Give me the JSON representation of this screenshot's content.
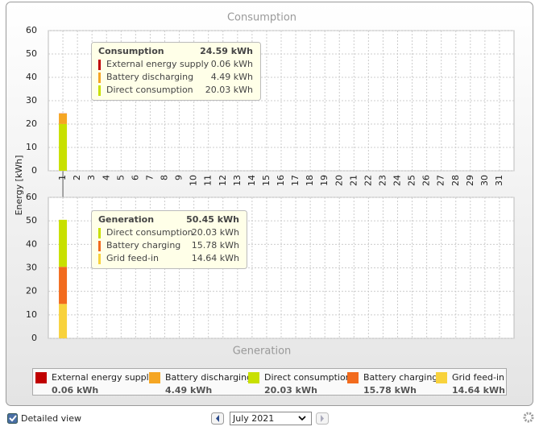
{
  "ylabel": "Energy [kWh]",
  "chart_data": [
    {
      "type": "bar",
      "stacked": true,
      "title": "Consumption",
      "categories": [
        "1",
        "2",
        "3",
        "4",
        "5",
        "6",
        "7",
        "8",
        "9",
        "10",
        "11",
        "12",
        "13",
        "14",
        "15",
        "16",
        "17",
        "18",
        "19",
        "20",
        "21",
        "22",
        "23",
        "24",
        "25",
        "26",
        "27",
        "28",
        "29",
        "30",
        "31"
      ],
      "series": [
        {
          "name": "External energy supply",
          "color": "#c00000",
          "values": [
            0.06,
            null,
            null,
            null,
            null,
            null,
            null,
            null,
            null,
            null,
            null,
            null,
            null,
            null,
            null,
            null,
            null,
            null,
            null,
            null,
            null,
            null,
            null,
            null,
            null,
            null,
            null,
            null,
            null,
            null,
            null
          ],
          "value_labels": [
            "0.06 kWh",
            null,
            null,
            null,
            null,
            null,
            null,
            null,
            null,
            null,
            null,
            null,
            null,
            null,
            null,
            null,
            null,
            null,
            null,
            null,
            null,
            null,
            null,
            null,
            null,
            null,
            null,
            null,
            null,
            null,
            null
          ]
        },
        {
          "name": "Battery discharging",
          "color": "#f5a623",
          "values": [
            4.49,
            null,
            null,
            null,
            null,
            null,
            null,
            null,
            null,
            null,
            null,
            null,
            null,
            null,
            null,
            null,
            null,
            null,
            null,
            null,
            null,
            null,
            null,
            null,
            null,
            null,
            null,
            null,
            null,
            null,
            null
          ],
          "value_labels": [
            "4.49 kWh",
            null,
            null,
            null,
            null,
            null,
            null,
            null,
            null,
            null,
            null,
            null,
            null,
            null,
            null,
            null,
            null,
            null,
            null,
            null,
            null,
            null,
            null,
            null,
            null,
            null,
            null,
            null,
            null,
            null,
            null
          ]
        },
        {
          "name": "Direct consumption",
          "color": "#c8e000",
          "values": [
            20.03,
            null,
            null,
            null,
            null,
            null,
            null,
            null,
            null,
            null,
            null,
            null,
            null,
            null,
            null,
            null,
            null,
            null,
            null,
            null,
            null,
            null,
            null,
            null,
            null,
            null,
            null,
            null,
            null,
            null,
            null
          ],
          "value_labels": [
            "20.03 kWh",
            null,
            null,
            null,
            null,
            null,
            null,
            null,
            null,
            null,
            null,
            null,
            null,
            null,
            null,
            null,
            null,
            null,
            null,
            null,
            null,
            null,
            null,
            null,
            null,
            null,
            null,
            null,
            null,
            null,
            null
          ]
        }
      ],
      "ylim": [
        0,
        60
      ],
      "yticks": [
        0,
        10,
        20,
        30,
        40,
        50,
        60
      ],
      "grid": true,
      "tooltip": {
        "title": "Consumption",
        "total": "24.59 kWh"
      }
    },
    {
      "type": "bar",
      "stacked": true,
      "title": "Generation",
      "series": [
        {
          "name": "Direct consumption",
          "color": "#c8e000",
          "values": [
            20.03,
            null,
            null,
            null,
            null,
            null,
            null,
            null,
            null,
            null,
            null,
            null,
            null,
            null,
            null,
            null,
            null,
            null,
            null,
            null,
            null,
            null,
            null,
            null,
            null,
            null,
            null,
            null,
            null,
            null,
            null
          ],
          "value_labels": [
            "20.03 kWh",
            null,
            null,
            null,
            null,
            null,
            null,
            null,
            null,
            null,
            null,
            null,
            null,
            null,
            null,
            null,
            null,
            null,
            null,
            null,
            null,
            null,
            null,
            null,
            null,
            null,
            null,
            null,
            null,
            null,
            null
          ]
        },
        {
          "name": "Battery charging",
          "color": "#f26b1d",
          "values": [
            15.78,
            null,
            null,
            null,
            null,
            null,
            null,
            null,
            null,
            null,
            null,
            null,
            null,
            null,
            null,
            null,
            null,
            null,
            null,
            null,
            null,
            null,
            null,
            null,
            null,
            null,
            null,
            null,
            null,
            null,
            null
          ],
          "value_labels": [
            "15.78 kWh",
            null,
            null,
            null,
            null,
            null,
            null,
            null,
            null,
            null,
            null,
            null,
            null,
            null,
            null,
            null,
            null,
            null,
            null,
            null,
            null,
            null,
            null,
            null,
            null,
            null,
            null,
            null,
            null,
            null,
            null
          ]
        },
        {
          "name": "Grid feed-in",
          "color": "#f8d23c",
          "values": [
            14.64,
            null,
            null,
            null,
            null,
            null,
            null,
            null,
            null,
            null,
            null,
            null,
            null,
            null,
            null,
            null,
            null,
            null,
            null,
            null,
            null,
            null,
            null,
            null,
            null,
            null,
            null,
            null,
            null,
            null,
            null
          ],
          "value_labels": [
            "14.64 kWh",
            null,
            null,
            null,
            null,
            null,
            null,
            null,
            null,
            null,
            null,
            null,
            null,
            null,
            null,
            null,
            null,
            null,
            null,
            null,
            null,
            null,
            null,
            null,
            null,
            null,
            null,
            null,
            null,
            null,
            null
          ]
        }
      ],
      "ylim": [
        0,
        60
      ],
      "yticks": [
        0,
        10,
        20,
        30,
        40,
        50,
        60
      ],
      "grid": true,
      "tooltip": {
        "title": "Generation",
        "total": "50.45 kWh"
      }
    }
  ],
  "legend": {
    "items": [
      {
        "name": "External energy supply",
        "color": "#c00000",
        "label": "0.06 kWh"
      },
      {
        "name": "Battery discharging",
        "color": "#f5a623",
        "label": "4.49 kWh"
      },
      {
        "name": "Direct consumption",
        "color": "#c8e000",
        "label": "20.03 kWh"
      },
      {
        "name": "Battery charging",
        "color": "#f26b1d",
        "label": "15.78 kWh"
      },
      {
        "name": "Grid feed-in",
        "color": "#f8d23c",
        "label": "14.64 kWh"
      }
    ]
  },
  "controls": {
    "detailed_view": "Detailed view",
    "month": "July 2021"
  }
}
